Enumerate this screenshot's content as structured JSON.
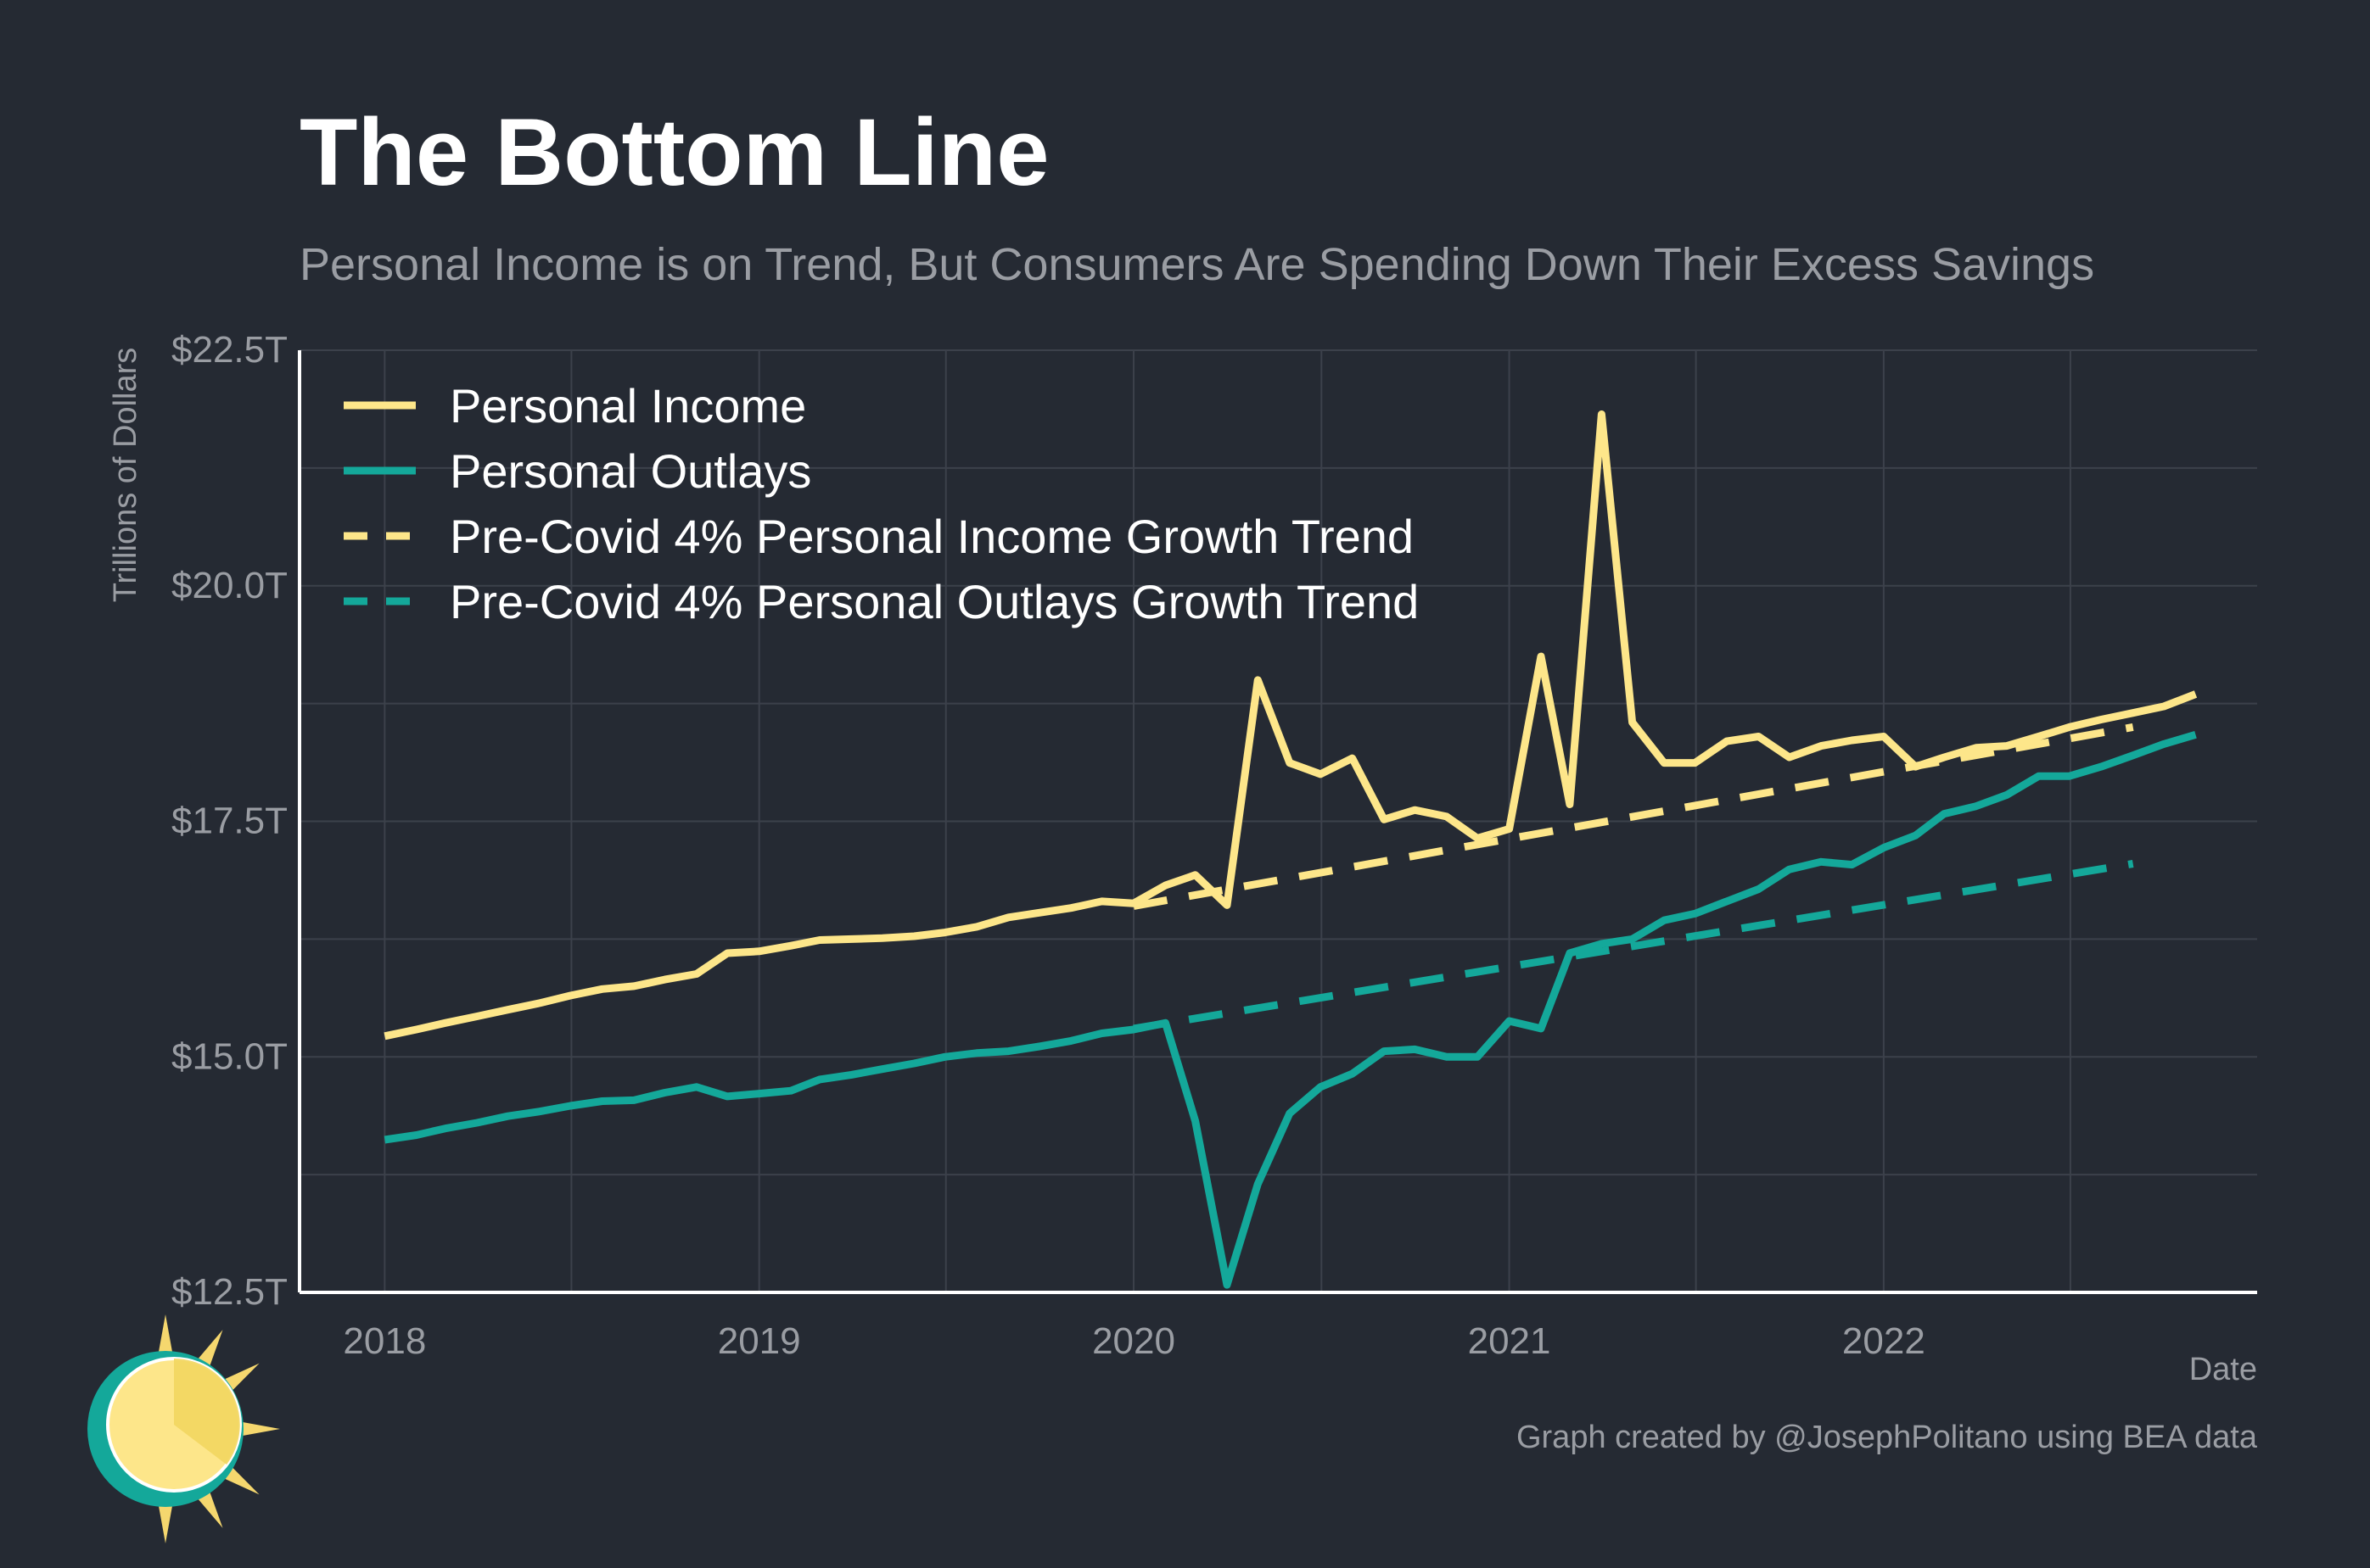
{
  "chart_data": {
    "type": "line",
    "title": "The Bottom Line",
    "subtitle": "Personal Income is on Trend, But Consumers Are Spending Down Their Excess Savings",
    "xlabel": "Date",
    "ylabel": "Trillions of Dollars",
    "caption": "Graph created by @JosephPolitano using BEA data",
    "xlim": [
      "2017-10-10",
      "2022-12-31"
    ],
    "ylim": [
      12.5,
      22.5
    ],
    "x_ticks": [
      {
        "date": "2018-01-01",
        "label": "2018"
      },
      {
        "date": "2019-01-01",
        "label": "2019"
      },
      {
        "date": "2020-01-01",
        "label": "2020"
      },
      {
        "date": "2021-01-01",
        "label": "2021"
      },
      {
        "date": "2022-01-01",
        "label": "2022"
      }
    ],
    "y_ticks": [
      {
        "value": 12.5,
        "label": "$12.5T"
      },
      {
        "value": 15.0,
        "label": "$15.0T"
      },
      {
        "value": 17.5,
        "label": "$17.5T"
      },
      {
        "value": 20.0,
        "label": "$20.0T"
      },
      {
        "value": 22.5,
        "label": "$22.5T"
      }
    ],
    "grid": true,
    "legend_position": "top-left",
    "series": [
      {
        "name": "Personal Income",
        "color": "#fde68a",
        "style": "solid",
        "start": "2018-01",
        "frequency": "monthly",
        "values": [
          15.22,
          15.29,
          15.36,
          15.43,
          15.5,
          15.57,
          15.65,
          15.72,
          15.75,
          15.82,
          15.88,
          16.1,
          16.12,
          16.18,
          16.24,
          16.25,
          16.26,
          16.28,
          16.32,
          16.38,
          16.48,
          16.53,
          16.58,
          16.65,
          16.63,
          16.82,
          16.93,
          16.61,
          19.0,
          18.12,
          18.0,
          18.17,
          17.52,
          17.62,
          17.55,
          17.32,
          17.42,
          19.25,
          17.68,
          21.82,
          18.55,
          18.12,
          18.12,
          18.35,
          18.4,
          18.18,
          18.3,
          18.36,
          18.4,
          18.08,
          18.18,
          18.28,
          18.3,
          18.4,
          18.5,
          18.58,
          18.65,
          18.72,
          18.85
        ]
      },
      {
        "name": "Personal Outlays",
        "color": "#14a89a",
        "style": "solid",
        "start": "2018-01",
        "frequency": "monthly",
        "values": [
          14.12,
          14.17,
          14.24,
          14.3,
          14.37,
          14.42,
          14.48,
          14.53,
          14.54,
          14.62,
          14.68,
          14.58,
          14.61,
          14.64,
          14.76,
          14.81,
          14.87,
          14.93,
          15.0,
          15.04,
          15.06,
          15.11,
          15.17,
          15.25,
          15.29,
          15.36,
          14.32,
          12.58,
          13.65,
          14.4,
          14.68,
          14.82,
          15.06,
          15.08,
          15.0,
          15.0,
          15.38,
          15.3,
          16.1,
          16.2,
          16.25,
          16.45,
          16.52,
          16.65,
          16.78,
          16.99,
          17.07,
          17.04,
          17.22,
          17.35,
          17.58,
          17.66,
          17.78,
          17.98,
          17.98,
          18.08,
          18.2,
          18.32,
          18.42
        ]
      },
      {
        "name": "Pre-Covid 4% Personal Income Growth Trend",
        "color": "#fde68a",
        "style": "dashed",
        "x": [
          "2020-01-01",
          "2022-09-01"
        ],
        "values": [
          16.6,
          18.5
        ]
      },
      {
        "name": "Pre-Covid 4% Personal Outlays Growth Trend",
        "color": "#14a89a",
        "style": "dashed",
        "x": [
          "2020-01-01",
          "2022-09-01"
        ],
        "values": [
          15.3,
          17.05
        ]
      }
    ]
  },
  "colors": {
    "background": "#252a33",
    "grid": "#3c414b",
    "axis": "#ffffff",
    "muted_text": "#9a9da3",
    "logo_ring": "#14a89a",
    "logo_sun": "#fde68a"
  },
  "logo": {
    "icon": "sun-logo-icon"
  }
}
